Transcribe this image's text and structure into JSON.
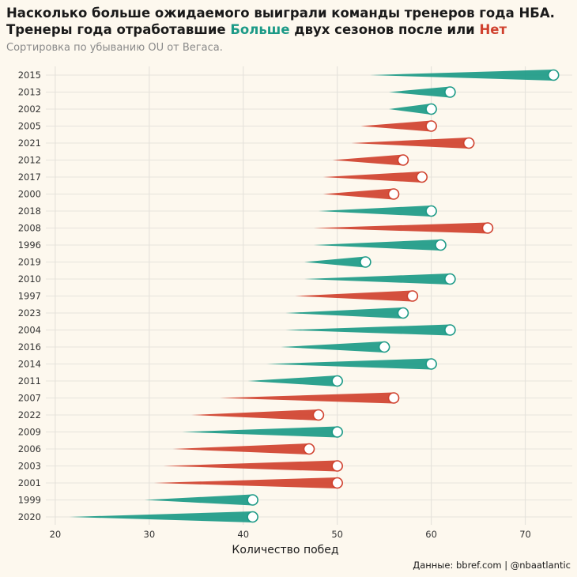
{
  "title": {
    "line1": "Насколько больше ожидаемого выиграли команды тренеров года НБА.",
    "line2_prefix": "Тренеры года отработавшие ",
    "line2_more": "Больше",
    "line2_mid": " двух сезонов после или ",
    "line2_no": "Нет"
  },
  "subtitle": "Сортировка по убыванию OU от Вегаса.",
  "caption": "Данные: bbref.com | @nbaatlantic",
  "colors": {
    "more": "#1c9a87",
    "no": "#d0412e",
    "grid": "#e6e3dc",
    "background": "#fdf8ee"
  },
  "chart_data": {
    "type": "bar",
    "xlabel": "Количество побед",
    "ylabel": "",
    "xlim": [
      19,
      75
    ],
    "xticks": [
      20,
      30,
      40,
      50,
      60,
      70
    ],
    "grid": true,
    "legend": "in-title",
    "rows": [
      {
        "year": "2015",
        "start": 53.5,
        "end": 73,
        "group": "more"
      },
      {
        "year": "2013",
        "start": 55.5,
        "end": 62,
        "group": "more"
      },
      {
        "year": "2002",
        "start": 55.5,
        "end": 60,
        "group": "more"
      },
      {
        "year": "2005",
        "start": 52.5,
        "end": 60,
        "group": "no"
      },
      {
        "year": "2021",
        "start": 51.5,
        "end": 64,
        "group": "no"
      },
      {
        "year": "2012",
        "start": 49.5,
        "end": 57,
        "group": "no"
      },
      {
        "year": "2017",
        "start": 48.5,
        "end": 59,
        "group": "no"
      },
      {
        "year": "2000",
        "start": 48.5,
        "end": 56,
        "group": "no"
      },
      {
        "year": "2018",
        "start": 48,
        "end": 60,
        "group": "more"
      },
      {
        "year": "2008",
        "start": 47.5,
        "end": 66,
        "group": "no"
      },
      {
        "year": "1996",
        "start": 47.5,
        "end": 61,
        "group": "more"
      },
      {
        "year": "2019",
        "start": 46.5,
        "end": 53,
        "group": "more"
      },
      {
        "year": "2010",
        "start": 46.5,
        "end": 62,
        "group": "more"
      },
      {
        "year": "1997",
        "start": 45.5,
        "end": 58,
        "group": "no"
      },
      {
        "year": "2023",
        "start": 44.5,
        "end": 57,
        "group": "more"
      },
      {
        "year": "2004",
        "start": 44.5,
        "end": 62,
        "group": "more"
      },
      {
        "year": "2016",
        "start": 44,
        "end": 55,
        "group": "more"
      },
      {
        "year": "2014",
        "start": 42.5,
        "end": 60,
        "group": "more"
      },
      {
        "year": "2011",
        "start": 40.5,
        "end": 50,
        "group": "more"
      },
      {
        "year": "2007",
        "start": 37.5,
        "end": 56,
        "group": "no"
      },
      {
        "year": "2022",
        "start": 34.5,
        "end": 48,
        "group": "no"
      },
      {
        "year": "2009",
        "start": 33.5,
        "end": 50,
        "group": "more"
      },
      {
        "year": "2006",
        "start": 32.5,
        "end": 47,
        "group": "no"
      },
      {
        "year": "2003",
        "start": 31.5,
        "end": 50,
        "group": "no"
      },
      {
        "year": "2001",
        "start": 30.5,
        "end": 50,
        "group": "no"
      },
      {
        "year": "1999",
        "start": 29.5,
        "end": 41,
        "group": "more"
      },
      {
        "year": "2020",
        "start": 21.5,
        "end": 41,
        "group": "more"
      }
    ]
  }
}
